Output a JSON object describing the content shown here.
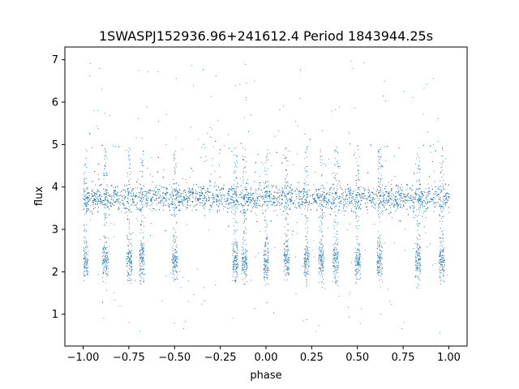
{
  "chart_data": {
    "type": "scatter",
    "title": "1SWASPJ152936.96+241612.4 Period 1843944.25s",
    "xlabel": "phase",
    "ylabel": "flux",
    "xlim": [
      -1.1,
      1.1
    ],
    "ylim": [
      0.25,
      7.3
    ],
    "xticks": [
      -1.0,
      -0.75,
      -0.5,
      -0.25,
      0.0,
      0.25,
      0.5,
      0.75,
      1.0
    ],
    "xtick_labels": [
      "−1.00",
      "−0.75",
      "−0.50",
      "−0.25",
      "0.00",
      "0.25",
      "0.50",
      "0.75",
      "1.00"
    ],
    "yticks": [
      1,
      2,
      3,
      4,
      5,
      6,
      7
    ],
    "ytick_labels": [
      "1",
      "2",
      "3",
      "4",
      "5",
      "6",
      "7"
    ],
    "grid": false,
    "marker_color": "#1f77b4",
    "series": [
      {
        "x_range": [
          -1.0,
          1.0
        ],
        "main_band": {
          "center": 3.75,
          "spread": 0.18
        },
        "secondary_band": {
          "center": 2.25,
          "spread": 0.2
        },
        "outlier_range": [
          0.5,
          7.0
        ],
        "clusters_x": [
          -0.99,
          -0.88,
          -0.75,
          -0.68,
          -0.5,
          -0.17,
          -0.12,
          0.0,
          0.11,
          0.22,
          0.3,
          0.38,
          0.5,
          0.62,
          0.83,
          0.96
        ]
      }
    ]
  }
}
